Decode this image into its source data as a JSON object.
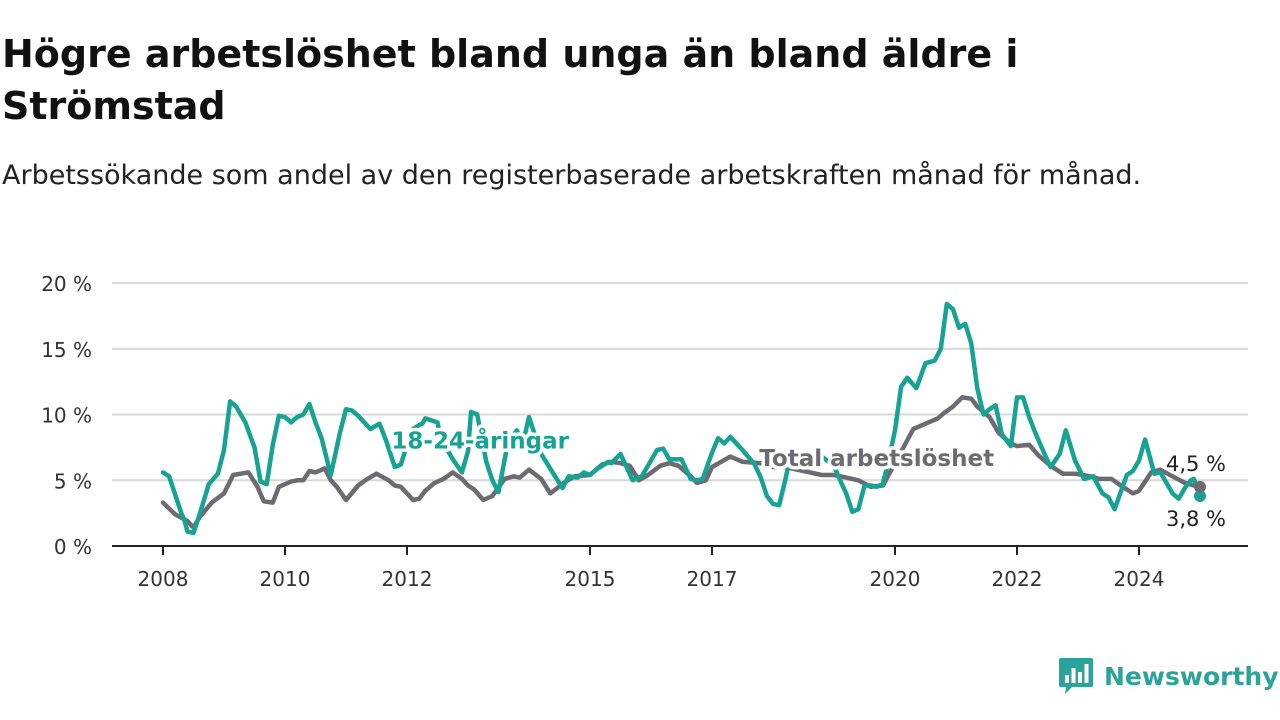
{
  "title": "Högre arbetslöshet bland unga än bland äldre i Strömstad",
  "subtitle": "Arbetssökande som andel av den registerbaserade arbetskraften månad för månad.",
  "brand": {
    "name": "Newsworthy",
    "icon": "newsworthy-logo-icon"
  },
  "chart_data": {
    "type": "line",
    "title": "Högre arbetslöshet bland unga än bland äldre i Strömstad",
    "subtitle": "Arbetssökande som andel av den registerbaserade arbetskraften månad för månad.",
    "xlabel": "",
    "ylabel": "",
    "xlim": [
      2008.0,
      2025.0
    ],
    "ylim": [
      0,
      20
    ],
    "y_ticks": [
      0,
      5,
      10,
      15,
      20
    ],
    "y_tick_labels": [
      "0 %",
      "5 %",
      "10 %",
      "15 %",
      "20 %"
    ],
    "x_ticks": [
      2008,
      2010,
      2012,
      2015,
      2017,
      2020,
      2022,
      2024
    ],
    "x_tick_labels": [
      "2008",
      "2010",
      "2012",
      "2015",
      "2017",
      "2020",
      "2022",
      "2024"
    ],
    "grid": true,
    "legend": "none",
    "series": [
      {
        "name": "18-24-åringar",
        "color": "#16a394",
        "end_label": "3,8 %",
        "x": [
          2008.0,
          2008.1,
          2008.3,
          2008.35,
          2008.4,
          2008.5,
          2008.6,
          2008.75,
          2008.9,
          2009.0,
          2009.1,
          2009.2,
          2009.35,
          2009.5,
          2009.6,
          2009.7,
          2009.8,
          2009.9,
          2010.0,
          2010.1,
          2010.2,
          2010.3,
          2010.4,
          2010.5,
          2010.6,
          2010.75,
          2010.9,
          2011.0,
          2011.1,
          2011.2,
          2011.4,
          2011.55,
          2011.65,
          2011.8,
          2011.9,
          2012.0,
          2012.1,
          2012.2,
          2012.25,
          2012.3,
          2012.5,
          2012.55,
          2012.75,
          2012.9,
          2013.0,
          2013.05,
          2013.15,
          2013.3,
          2013.4,
          2013.5,
          2013.65,
          2013.8,
          2013.9,
          2014.0,
          2014.2,
          2014.4,
          2014.55,
          2014.65,
          2014.8,
          2014.9,
          2015.0,
          2015.1,
          2015.3,
          2015.35,
          2015.5,
          2015.7,
          2015.85,
          2015.9,
          2016.1,
          2016.2,
          2016.3,
          2016.5,
          2016.65,
          2016.75,
          2016.85,
          2017.0,
          2017.1,
          2017.2,
          2017.3,
          2017.4,
          2017.5,
          2017.7,
          2017.8,
          2017.9,
          2018.0,
          2018.1,
          2018.2,
          2018.25,
          2018.35,
          2018.5,
          2018.7,
          2018.8,
          2019.0,
          2019.1,
          2019.2,
          2019.3,
          2019.4,
          2019.5,
          2019.6,
          2019.7,
          2019.8,
          2019.9,
          2020.0,
          2020.1,
          2020.2,
          2020.35,
          2020.5,
          2020.65,
          2020.75,
          2020.85,
          2020.95,
          2021.05,
          2021.15,
          2021.25,
          2021.35,
          2021.45,
          2021.55,
          2021.65,
          2021.75,
          2021.9,
          2022.0,
          2022.1,
          2022.2,
          2022.3,
          2022.45,
          2022.55,
          2022.7,
          2022.8,
          2022.95,
          2023.1,
          2023.25,
          2023.4,
          2023.5,
          2023.6,
          2023.8,
          2023.9,
          2024.0,
          2024.1,
          2024.25,
          2024.35,
          2024.45,
          2024.55,
          2024.65,
          2024.75,
          2024.85,
          2024.9,
          2024.95,
          2025.0
        ],
        "y": [
          5.6,
          5.3,
          2.5,
          2.0,
          1.1,
          1.0,
          2.4,
          4.7,
          5.5,
          7.3,
          11.0,
          10.6,
          9.4,
          7.5,
          4.9,
          4.7,
          7.7,
          9.9,
          9.8,
          9.4,
          9.8,
          10.0,
          10.8,
          9.4,
          8.2,
          5.4,
          8.6,
          10.4,
          10.3,
          9.9,
          8.9,
          9.3,
          8.1,
          6.0,
          6.2,
          7.7,
          8.9,
          9.2,
          9.3,
          9.7,
          9.4,
          8.2,
          6.6,
          5.6,
          7.2,
          10.2,
          10.0,
          6.4,
          5.0,
          4.1,
          7.8,
          8.8,
          7.8,
          9.8,
          7.0,
          5.5,
          4.4,
          5.3,
          5.2,
          5.6,
          5.4,
          5.8,
          6.4,
          6.3,
          7.0,
          5.0,
          5.3,
          5.7,
          7.3,
          7.4,
          6.6,
          6.6,
          5.1,
          5.0,
          5.1,
          7.1,
          8.2,
          7.8,
          8.3,
          7.8,
          7.3,
          6.2,
          5.2,
          3.8,
          3.2,
          3.1,
          5.0,
          6.1,
          6.2,
          6.6,
          6.8,
          6.8,
          6.1,
          5.0,
          4.0,
          2.6,
          2.8,
          4.6,
          4.6,
          4.5,
          4.7,
          6.6,
          8.8,
          12.1,
          12.8,
          12.0,
          13.9,
          14.1,
          15.0,
          18.4,
          18.0,
          16.6,
          16.9,
          15.4,
          12.0,
          10.0,
          10.4,
          10.7,
          8.5,
          7.6,
          11.3,
          11.3,
          9.8,
          8.6,
          7.0,
          6.0,
          7.0,
          8.8,
          6.5,
          5.1,
          5.3,
          4.0,
          3.7,
          2.8,
          5.4,
          5.7,
          6.5,
          8.1,
          5.5,
          5.6,
          4.8,
          4.0,
          3.6,
          4.4,
          5.0,
          5.1,
          4.4,
          3.8
        ]
      },
      {
        "name": "Total arbetslöshet",
        "color": "#6e6a72",
        "end_label": "4,5 %",
        "x": [
          2008.0,
          2008.2,
          2008.4,
          2008.5,
          2008.6,
          2008.8,
          2009.0,
          2009.15,
          2009.4,
          2009.55,
          2009.65,
          2009.8,
          2009.9,
          2010.1,
          2010.2,
          2010.3,
          2010.4,
          2010.5,
          2010.65,
          2010.75,
          2010.85,
          2011.0,
          2011.2,
          2011.35,
          2011.5,
          2011.7,
          2011.8,
          2011.9,
          2012.0,
          2012.1,
          2012.2,
          2012.3,
          2012.45,
          2012.6,
          2012.75,
          2012.9,
          2013.0,
          2013.1,
          2013.25,
          2013.4,
          2013.6,
          2013.75,
          2013.85,
          2014.0,
          2014.2,
          2014.35,
          2014.6,
          2014.75,
          2015.0,
          2015.2,
          2015.35,
          2015.5,
          2015.65,
          2015.8,
          2015.95,
          2016.15,
          2016.3,
          2016.45,
          2016.65,
          2016.75,
          2016.9,
          2017.0,
          2017.3,
          2017.5,
          2017.8,
          2018.0,
          2018.2,
          2018.5,
          2018.8,
          2019.0,
          2019.2,
          2019.4,
          2019.6,
          2019.8,
          2020.0,
          2020.15,
          2020.3,
          2020.5,
          2020.7,
          2020.8,
          2020.95,
          2021.1,
          2021.25,
          2021.35,
          2021.55,
          2021.7,
          2021.9,
          2022.0,
          2022.2,
          2022.35,
          2022.55,
          2022.75,
          2022.95,
          2023.2,
          2023.35,
          2023.55,
          2023.7,
          2023.9,
          2024.0,
          2024.2,
          2024.35,
          2024.55,
          2024.75,
          2024.9,
          2025.0
        ],
        "y": [
          3.3,
          2.4,
          1.9,
          1.4,
          2.2,
          3.3,
          4.0,
          5.4,
          5.6,
          4.5,
          3.4,
          3.3,
          4.5,
          4.9,
          5.0,
          5.0,
          5.7,
          5.6,
          5.9,
          5.0,
          4.5,
          3.5,
          4.6,
          5.1,
          5.5,
          5.0,
          4.6,
          4.5,
          4.0,
          3.5,
          3.6,
          4.2,
          4.8,
          5.1,
          5.6,
          5.1,
          4.6,
          4.3,
          3.5,
          3.8,
          5.1,
          5.3,
          5.2,
          5.8,
          5.1,
          4.0,
          4.9,
          5.3,
          5.4,
          6.2,
          6.4,
          6.3,
          6.1,
          5.0,
          5.4,
          6.1,
          6.3,
          6.1,
          5.3,
          4.8,
          5.0,
          6.0,
          6.8,
          6.4,
          6.3,
          6.0,
          6.0,
          5.7,
          5.4,
          5.4,
          5.2,
          5.0,
          4.5,
          4.6,
          6.3,
          7.6,
          8.9,
          9.3,
          9.7,
          10.1,
          10.6,
          11.3,
          11.2,
          10.6,
          9.8,
          8.6,
          7.8,
          7.6,
          7.7,
          6.9,
          6.1,
          5.5,
          5.5,
          5.3,
          5.1,
          5.1,
          4.6,
          4.0,
          4.2,
          5.6,
          5.8,
          5.3,
          4.8,
          4.6,
          4.5
        ]
      }
    ],
    "annotations": [
      {
        "text": "18-24-åringar",
        "series": "18-24-åringar",
        "color": "#16a394",
        "x": 2013.2,
        "y": 7.4
      },
      {
        "text": "Total arbetslöshet",
        "series": "Total arbetslöshet",
        "color": "#6e6a72",
        "x": 2019.7,
        "y": 6.1
      }
    ]
  }
}
